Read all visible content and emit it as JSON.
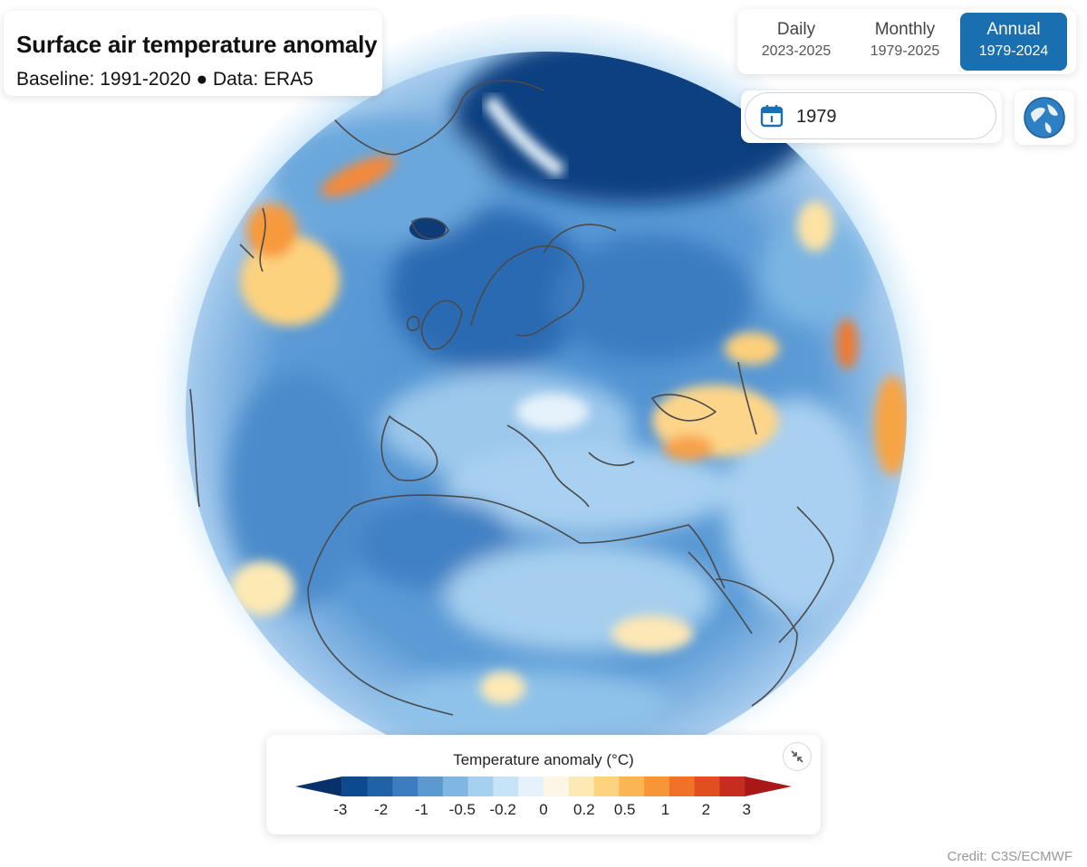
{
  "title": "Surface air temperature anomaly",
  "subtitle": "Baseline: 1991-2020 ● Data: ERA5",
  "period_tabs": [
    {
      "label": "Daily",
      "range": "2023-2025",
      "active": false
    },
    {
      "label": "Monthly",
      "range": "1979-2025",
      "active": false
    },
    {
      "label": "Annual",
      "range": "1979-2024",
      "active": true
    }
  ],
  "year_picker": {
    "value": "1979",
    "icon": "calendar-icon"
  },
  "globe_button": {
    "icon": "globe-icon"
  },
  "legend": {
    "title": "Temperature anomaly (°C)",
    "tick_labels": [
      "-3",
      "-2",
      "-1",
      "-0.5",
      "-0.2",
      "0",
      "0.2",
      "0.5",
      "1",
      "2",
      "3"
    ],
    "colors": [
      "#08306b",
      "#0b4a8f",
      "#1f62a8",
      "#3b7dc0",
      "#5a99d2",
      "#7fb6e2",
      "#a6d0ef",
      "#c9e3f6",
      "#e6f2fb",
      "#fbf6e6",
      "#fde9b4",
      "#fdd380",
      "#fcb554",
      "#f79639",
      "#ee7228",
      "#df4f20",
      "#c72d1e",
      "#a81818"
    ],
    "collapse_icon": "collapse-arrows-icon"
  },
  "credit": "Credit: C3S/ECMWF"
}
